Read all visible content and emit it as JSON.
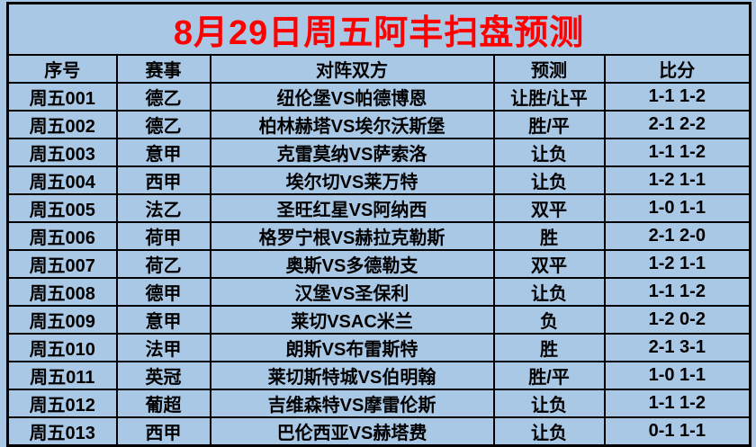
{
  "title": "8月29日周五阿丰扫盘预测",
  "colors": {
    "background": "#a9c8e6",
    "grid_border": "#000000",
    "title_text": "#ff0000",
    "cell_text": "#000000"
  },
  "table": {
    "headers": [
      "序号",
      "赛事",
      "对阵双方",
      "预测",
      "比分"
    ],
    "rows": [
      [
        "周五001",
        "德乙",
        "纽伦堡VS帕德博恩",
        "让胜/让平",
        "1-1 1-2"
      ],
      [
        "周五002",
        "德乙",
        "柏林赫塔VS埃尔沃斯堡",
        "胜/平",
        "2-1 2-2"
      ],
      [
        "周五003",
        "意甲",
        "克雷莫纳VS萨索洛",
        "让负",
        "1-1 1-2"
      ],
      [
        "周五004",
        "西甲",
        "埃尔切VS莱万特",
        "让负",
        "1-2 1-1"
      ],
      [
        "周五005",
        "法乙",
        "圣旺红星VS阿纳西",
        "双平",
        "1-0 1-1"
      ],
      [
        "周五006",
        "荷甲",
        "格罗宁根VS赫拉克勒斯",
        "胜",
        "2-1 2-0"
      ],
      [
        "周五007",
        "荷乙",
        "奥斯VS多德勒支",
        "双平",
        "1-2 1-1"
      ],
      [
        "周五008",
        "德甲",
        "汉堡VS圣保利",
        "让负",
        "1-1 1-2"
      ],
      [
        "周五009",
        "意甲",
        "莱切VSAC米兰",
        "负",
        "1-2 0-2"
      ],
      [
        "周五010",
        "法甲",
        "朗斯VS布雷斯特",
        "胜",
        "2-1 3-1"
      ],
      [
        "周五011",
        "英冠",
        "莱切斯特城VS伯明翰",
        "胜/平",
        "1-0 1-1"
      ],
      [
        "周五012",
        "葡超",
        "吉维森特VS摩雷伦斯",
        "让负",
        "1-1 1-2"
      ],
      [
        "周五013",
        "西甲",
        "巴伦西亚VS赫塔费",
        "让负",
        "0-1 1-1"
      ]
    ]
  }
}
